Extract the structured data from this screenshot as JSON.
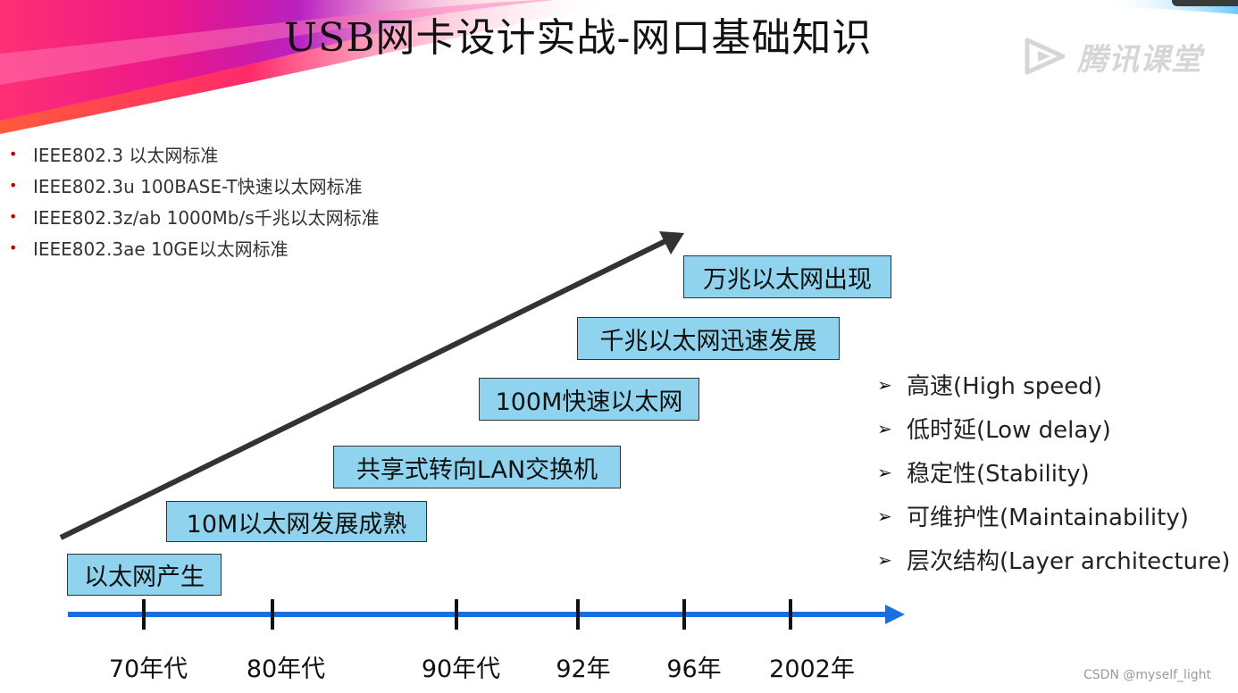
{
  "slide": {
    "title": "USB网卡设计实战-网口基础知识",
    "watermark": "腾讯课堂",
    "credit": "CSDN @myself_light"
  },
  "standards": [
    "IEEE802.3 以太网标准",
    "IEEE802.3u 100BASE-T快速以太网标准",
    "IEEE802.3z/ab 1000Mb/s千兆以太网标准",
    "IEEE802.3ae 10GE以太网标准"
  ],
  "stages": [
    "以太网产生",
    "10M以太网发展成熟",
    "共享式转向LAN交换机",
    "100M快速以太网",
    "千兆以太网迅速发展",
    "万兆以太网出现"
  ],
  "eras": [
    "70年代",
    "80年代",
    "90年代",
    "92年",
    "96年",
    "2002年"
  ],
  "features": [
    "高速(High speed)",
    "低时延(Low delay)",
    "稳定性(Stability)",
    "可维护性(Maintainability)",
    "层次结构(Layer architecture)"
  ],
  "colors": {
    "box_fill": "#8fd3ee",
    "timeline": "#1a6fe0",
    "trend_arrow": "#333333",
    "bullet": "#c00000"
  }
}
